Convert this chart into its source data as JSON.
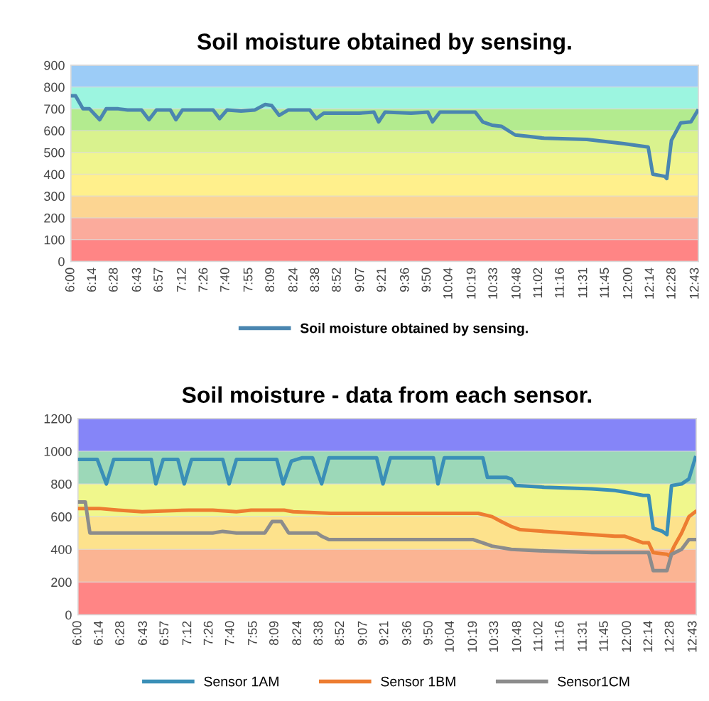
{
  "chart_data": [
    {
      "type": "line",
      "title": "Soil moisture obtained by sensing.",
      "xlim": [
        6,
        12.75
      ],
      "ylim": [
        0,
        900
      ],
      "yticks": [
        0,
        100,
        200,
        300,
        400,
        500,
        600,
        700,
        800,
        900
      ],
      "xticks": [
        {
          "value": 6,
          "label": "6:00"
        },
        {
          "value": 6.2333,
          "label": "6:14"
        },
        {
          "value": 6.4667,
          "label": "6:28"
        },
        {
          "value": 6.7167,
          "label": "6:43"
        },
        {
          "value": 6.95,
          "label": "6:57"
        },
        {
          "value": 7.2,
          "label": "7:12"
        },
        {
          "value": 7.4333,
          "label": "7:26"
        },
        {
          "value": 7.6667,
          "label": "7:40"
        },
        {
          "value": 7.9167,
          "label": "7:55"
        },
        {
          "value": 8.15,
          "label": "8:09"
        },
        {
          "value": 8.4,
          "label": "8:24"
        },
        {
          "value": 8.6333,
          "label": "8:38"
        },
        {
          "value": 8.8667,
          "label": "8:52"
        },
        {
          "value": 9.1167,
          "label": "9:07"
        },
        {
          "value": 9.35,
          "label": "9:21"
        },
        {
          "value": 9.6,
          "label": "9:36"
        },
        {
          "value": 9.8333,
          "label": "9:50"
        },
        {
          "value": 10.0667,
          "label": "10:04"
        },
        {
          "value": 10.3167,
          "label": "10:19"
        },
        {
          "value": 10.55,
          "label": "10:33"
        },
        {
          "value": 10.8,
          "label": "10:48"
        },
        {
          "value": 11.0333,
          "label": "11:02"
        },
        {
          "value": 11.2667,
          "label": "11:16"
        },
        {
          "value": 11.5167,
          "label": "11:31"
        },
        {
          "value": 11.75,
          "label": "11:45"
        },
        {
          "value": 12,
          "label": "12:00"
        },
        {
          "value": 12.2333,
          "label": "12:14"
        },
        {
          "value": 12.4667,
          "label": "12:28"
        },
        {
          "value": 12.7167,
          "label": "12:43"
        }
      ],
      "grid": "y",
      "legend": "bottom",
      "marker": "none",
      "line_style": "solid",
      "bands": [
        {
          "axis": "y",
          "from": 0,
          "to": 100,
          "color": "#ff8585"
        },
        {
          "axis": "y",
          "from": 100,
          "to": 200,
          "color": "#fbab9c"
        },
        {
          "axis": "y",
          "from": 200,
          "to": 300,
          "color": "#fcd592"
        },
        {
          "axis": "y",
          "from": 300,
          "to": 400,
          "color": "#fff08c"
        },
        {
          "axis": "y",
          "from": 400,
          "to": 500,
          "color": "#f0f58e"
        },
        {
          "axis": "y",
          "from": 500,
          "to": 600,
          "color": "#d9f28e"
        },
        {
          "axis": "y",
          "from": 600,
          "to": 700,
          "color": "#b3eb8f"
        },
        {
          "axis": "y",
          "from": 700,
          "to": 800,
          "color": "#9cf5e0"
        },
        {
          "axis": "y",
          "from": 800,
          "to": 900,
          "color": "#9cccf7"
        }
      ],
      "series": [
        {
          "name": "Soil moisture obtained by sensing.",
          "color": "#4a86b0",
          "x": [
            6.0,
            6.05,
            6.13,
            6.2,
            6.31,
            6.38,
            6.51,
            6.61,
            6.76,
            6.84,
            6.92,
            7.07,
            7.13,
            7.2,
            7.53,
            7.6,
            7.68,
            7.83,
            7.98,
            8.09,
            8.16,
            8.24,
            8.34,
            8.57,
            8.64,
            8.72,
            9.1,
            9.26,
            9.31,
            9.38,
            9.66,
            9.84,
            9.89,
            9.97,
            10.35,
            10.43,
            10.53,
            10.63,
            10.78,
            10.89,
            11.09,
            11.55,
            11.75,
            11.95,
            12.21,
            12.26,
            12.39,
            12.41,
            12.46,
            12.56,
            12.67,
            12.74
          ],
          "values": [
            760,
            760,
            700,
            700,
            650,
            700,
            700,
            695,
            695,
            650,
            695,
            695,
            650,
            695,
            695,
            655,
            695,
            690,
            695,
            720,
            715,
            670,
            695,
            695,
            655,
            680,
            680,
            685,
            640,
            685,
            680,
            685,
            640,
            685,
            685,
            640,
            625,
            620,
            580,
            575,
            565,
            560,
            550,
            540,
            525,
            400,
            390,
            380,
            555,
            635,
            640,
            690
          ]
        }
      ]
    },
    {
      "type": "line",
      "title": "Soil moisture - data from each sensor.",
      "xlim": [
        6,
        12.75
      ],
      "ylim": [
        0,
        1200
      ],
      "yticks": [
        0,
        200,
        400,
        600,
        800,
        1000,
        1200
      ],
      "xticks": [
        {
          "value": 6,
          "label": "6:00"
        },
        {
          "value": 6.2333,
          "label": "6:14"
        },
        {
          "value": 6.4667,
          "label": "6:28"
        },
        {
          "value": 6.7167,
          "label": "6:43"
        },
        {
          "value": 6.95,
          "label": "6:57"
        },
        {
          "value": 7.2,
          "label": "7:12"
        },
        {
          "value": 7.4333,
          "label": "7:26"
        },
        {
          "value": 7.6667,
          "label": "7:40"
        },
        {
          "value": 7.9167,
          "label": "7:55"
        },
        {
          "value": 8.15,
          "label": "8:09"
        },
        {
          "value": 8.4,
          "label": "8:24"
        },
        {
          "value": 8.6333,
          "label": "8:38"
        },
        {
          "value": 8.8667,
          "label": "8:52"
        },
        {
          "value": 9.1167,
          "label": "9:07"
        },
        {
          "value": 9.35,
          "label": "9:21"
        },
        {
          "value": 9.6,
          "label": "9:36"
        },
        {
          "value": 9.8333,
          "label": "9:50"
        },
        {
          "value": 10.0667,
          "label": "10:04"
        },
        {
          "value": 10.3167,
          "label": "10:19"
        },
        {
          "value": 10.55,
          "label": "10:33"
        },
        {
          "value": 10.8,
          "label": "10:48"
        },
        {
          "value": 11.0333,
          "label": "11:02"
        },
        {
          "value": 11.2667,
          "label": "11:16"
        },
        {
          "value": 11.5167,
          "label": "11:31"
        },
        {
          "value": 11.75,
          "label": "11:45"
        },
        {
          "value": 12,
          "label": "12:00"
        },
        {
          "value": 12.2333,
          "label": "12:14"
        },
        {
          "value": 12.4667,
          "label": "12:28"
        },
        {
          "value": 12.7167,
          "label": "12:43"
        }
      ],
      "grid": "y",
      "legend": "bottom",
      "marker": "none",
      "line_style": "solid",
      "bands": [
        {
          "axis": "y",
          "from": 0,
          "to": 200,
          "color": "#ff8585"
        },
        {
          "axis": "y",
          "from": 200,
          "to": 400,
          "color": "#fbb493"
        },
        {
          "axis": "y",
          "from": 400,
          "to": 600,
          "color": "#fde28c"
        },
        {
          "axis": "y",
          "from": 600,
          "to": 800,
          "color": "#f0f78c"
        },
        {
          "axis": "y",
          "from": 800,
          "to": 1000,
          "color": "#9cd8b8"
        },
        {
          "axis": "y",
          "from": 1000,
          "to": 1200,
          "color": "#8585f8"
        }
      ],
      "series": [
        {
          "name": "Sensor 1AM",
          "color": "#3a8fb7",
          "x": [
            6.0,
            6.21,
            6.31,
            6.39,
            6.8,
            6.85,
            6.93,
            7.09,
            7.16,
            7.24,
            7.58,
            7.65,
            7.73,
            8.17,
            8.24,
            8.33,
            8.45,
            8.56,
            8.66,
            8.74,
            9.26,
            9.33,
            9.41,
            9.88,
            9.93,
            10.0,
            10.42,
            10.47,
            10.68,
            10.73,
            10.78,
            11.09,
            11.61,
            11.86,
            11.97,
            12.07,
            12.17,
            12.23,
            12.28,
            12.38,
            12.43,
            12.48,
            12.59,
            12.67,
            12.74
          ],
          "values": [
            950,
            950,
            800,
            950,
            950,
            800,
            950,
            950,
            800,
            950,
            950,
            800,
            950,
            950,
            800,
            940,
            960,
            960,
            800,
            960,
            960,
            800,
            960,
            960,
            800,
            960,
            960,
            840,
            840,
            830,
            790,
            780,
            770,
            760,
            750,
            740,
            730,
            730,
            530,
            510,
            490,
            790,
            800,
            830,
            960
          ]
        },
        {
          "name": "Sensor 1BM",
          "color": "#ed7d31",
          "x": [
            6.0,
            6.23,
            6.44,
            6.7,
            7.21,
            7.47,
            7.73,
            7.89,
            8.25,
            8.35,
            8.76,
            10.31,
            10.37,
            10.52,
            10.62,
            10.73,
            10.83,
            11.09,
            11.35,
            11.61,
            11.86,
            11.97,
            12.07,
            12.17,
            12.23,
            12.28,
            12.43,
            12.46,
            12.51,
            12.59,
            12.67,
            12.74
          ],
          "values": [
            650,
            650,
            640,
            630,
            640,
            640,
            630,
            640,
            640,
            630,
            620,
            620,
            620,
            600,
            570,
            540,
            520,
            510,
            500,
            490,
            480,
            480,
            460,
            440,
            440,
            380,
            370,
            360,
            420,
            500,
            600,
            630
          ]
        },
        {
          "name": "Sensor1CM",
          "color": "#8c8c8c",
          "x": [
            6.0,
            6.08,
            6.13,
            7.47,
            7.58,
            7.73,
            8.04,
            8.12,
            8.22,
            8.3,
            8.61,
            8.66,
            8.74,
            10.31,
            10.42,
            10.52,
            10.73,
            11.09,
            11.61,
            12.23,
            12.28,
            12.43,
            12.48,
            12.59,
            12.67,
            12.74
          ],
          "values": [
            690,
            690,
            500,
            500,
            510,
            500,
            500,
            570,
            570,
            500,
            500,
            480,
            460,
            460,
            440,
            420,
            400,
            390,
            380,
            380,
            270,
            270,
            370,
            400,
            460,
            460
          ]
        }
      ]
    }
  ]
}
